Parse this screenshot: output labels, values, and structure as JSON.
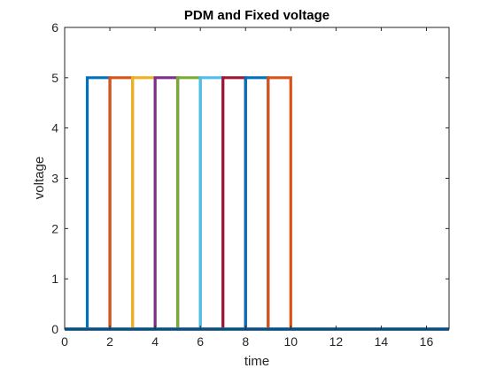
{
  "chart_data": {
    "type": "line",
    "title": "PDM and Fixed voltage",
    "xlabel": "time",
    "ylabel": "voltage",
    "xlim": [
      0,
      17
    ],
    "ylim": [
      0,
      6
    ],
    "xticks": [
      0,
      2,
      4,
      6,
      8,
      10,
      12,
      14,
      16
    ],
    "yticks": [
      0,
      1,
      2,
      3,
      4,
      5,
      6
    ],
    "grid": false,
    "legend": "none",
    "series": [
      {
        "color": "#0072BD",
        "x": [
          0,
          1,
          1,
          2,
          2,
          17
        ],
        "y": [
          0,
          0,
          5,
          5,
          0,
          0
        ]
      },
      {
        "color": "#D95319",
        "x": [
          0,
          2,
          2,
          3,
          3,
          17
        ],
        "y": [
          0,
          0,
          5,
          5,
          0,
          0
        ]
      },
      {
        "color": "#EDB120",
        "x": [
          0,
          3,
          3,
          4,
          4,
          17
        ],
        "y": [
          0,
          0,
          5,
          5,
          0,
          0
        ]
      },
      {
        "color": "#7E2F8E",
        "x": [
          0,
          4,
          4,
          5,
          5,
          17
        ],
        "y": [
          0,
          0,
          5,
          5,
          0,
          0
        ]
      },
      {
        "color": "#77AC30",
        "x": [
          0,
          5,
          5,
          6,
          6,
          17
        ],
        "y": [
          0,
          0,
          5,
          5,
          0,
          0
        ]
      },
      {
        "color": "#4DBEEE",
        "x": [
          0,
          6,
          6,
          7,
          7,
          17
        ],
        "y": [
          0,
          0,
          5,
          5,
          0,
          0
        ]
      },
      {
        "color": "#A2142F",
        "x": [
          0,
          7,
          7,
          8,
          8,
          17
        ],
        "y": [
          0,
          0,
          5,
          5,
          0,
          0
        ]
      },
      {
        "color": "#0072BD",
        "x": [
          0,
          8,
          8,
          9,
          9,
          17
        ],
        "y": [
          0,
          0,
          5,
          5,
          0,
          0
        ]
      },
      {
        "color": "#D95319",
        "x": [
          0,
          9,
          9,
          10,
          10,
          17
        ],
        "y": [
          0,
          0,
          5,
          5,
          0,
          0
        ]
      },
      {
        "color": "#0072BD",
        "x": [
          0,
          17
        ],
        "y": [
          0,
          0
        ]
      }
    ]
  }
}
